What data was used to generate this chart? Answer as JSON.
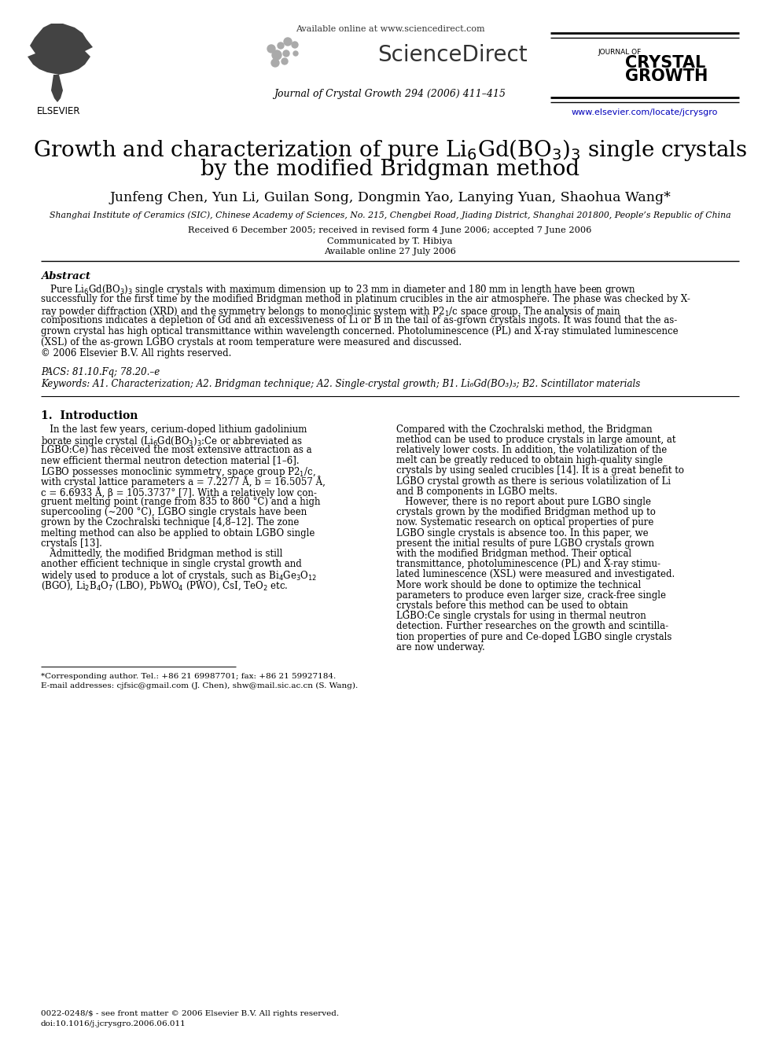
{
  "bg_color": "#ffffff",
  "available_online": "Available online at www.sciencedirect.com",
  "journal_info": "Journal of Crystal Growth 294 (2006) 411–415",
  "url": "www.elsevier.com/locate/jcrysgro",
  "authors": "Junfeng Chen, Yun Li, Guilan Song, Dongmin Yao, Lanying Yuan, Shaohua Wang*",
  "affiliation": "Shanghai Institute of Ceramics (SIC), Chinese Academy of Sciences, No. 215, Chengbei Road, Jiading District, Shanghai 201800, People’s Republic of China",
  "received": "Received 6 December 2005; received in revised form 4 June 2006; accepted 7 June 2006",
  "communicated": "Communicated by T. Hibiya",
  "available_online2": "Available online 27 July 2006",
  "abstract_title": "Abstract",
  "pacs": "PACS: 81.10.Fq; 78.20.–e",
  "keywords": "Keywords: A1. Characterization; A2. Bridgman technique; A2. Single-crystal growth; B1. Li₆Gd(BO₃)₃; B2. Scintillator materials",
  "section1_title": "1.  Introduction",
  "footnote_star": "*Corresponding author. Tel.: +86 21 69987701; fax: +86 21 59927184.",
  "footnote_email": "E-mail addresses: cjfsic@gmail.com (J. Chen), shw@mail.sic.ac.cn (S. Wang).",
  "footer_line1": "0022-0248/$ - see front matter © 2006 Elsevier B.V. All rights reserved.",
  "footer_line2": "doi:10.1016/j.jcrysgro.2006.06.011"
}
